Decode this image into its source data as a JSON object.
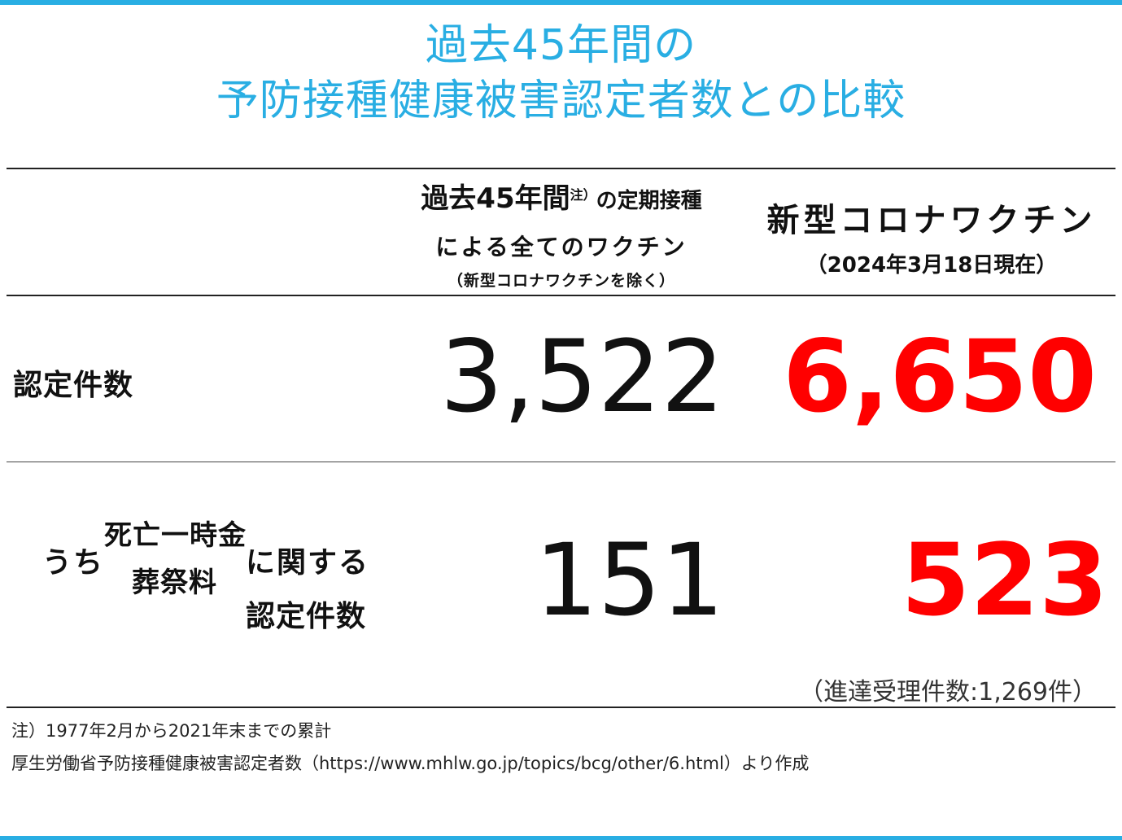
{
  "colors": {
    "accent": "#29aee3",
    "highlight": "#ff0000"
  },
  "title": {
    "line1": "過去45年間の",
    "line2": "予防接種健康被害認定者数との比較"
  },
  "header": {
    "col1_line1": "過去45年間",
    "col1_note_mark": "注）",
    "col1_line1_suffix": "の定期接種",
    "col1_line2": "による全てのワクチン",
    "col1_line3": "（新型コロナワクチンを除く）",
    "col2_line1": "新型コロナワクチン",
    "col2_line2": "（2024年3月18日現在）"
  },
  "rows": [
    {
      "label": "認定件数",
      "value_existing": "3,522",
      "value_covid": "6,650"
    },
    {
      "label_prefix": "うち",
      "label_type1": "死亡一時金",
      "label_type2": "葬祭料",
      "label_suffix": "に関する",
      "label_line2": "認定件数",
      "value_existing": "151",
      "value_covid": "523"
    }
  ],
  "pending_note": "（進達受理件数:1,269件）",
  "footnotes": {
    "note1": "注）1977年2月から2021年末までの累計",
    "source": "厚生労働省予防接種健康被害認定者数（https://www.mhlw.go.jp/topics/bcg/other/6.html）より作成"
  }
}
